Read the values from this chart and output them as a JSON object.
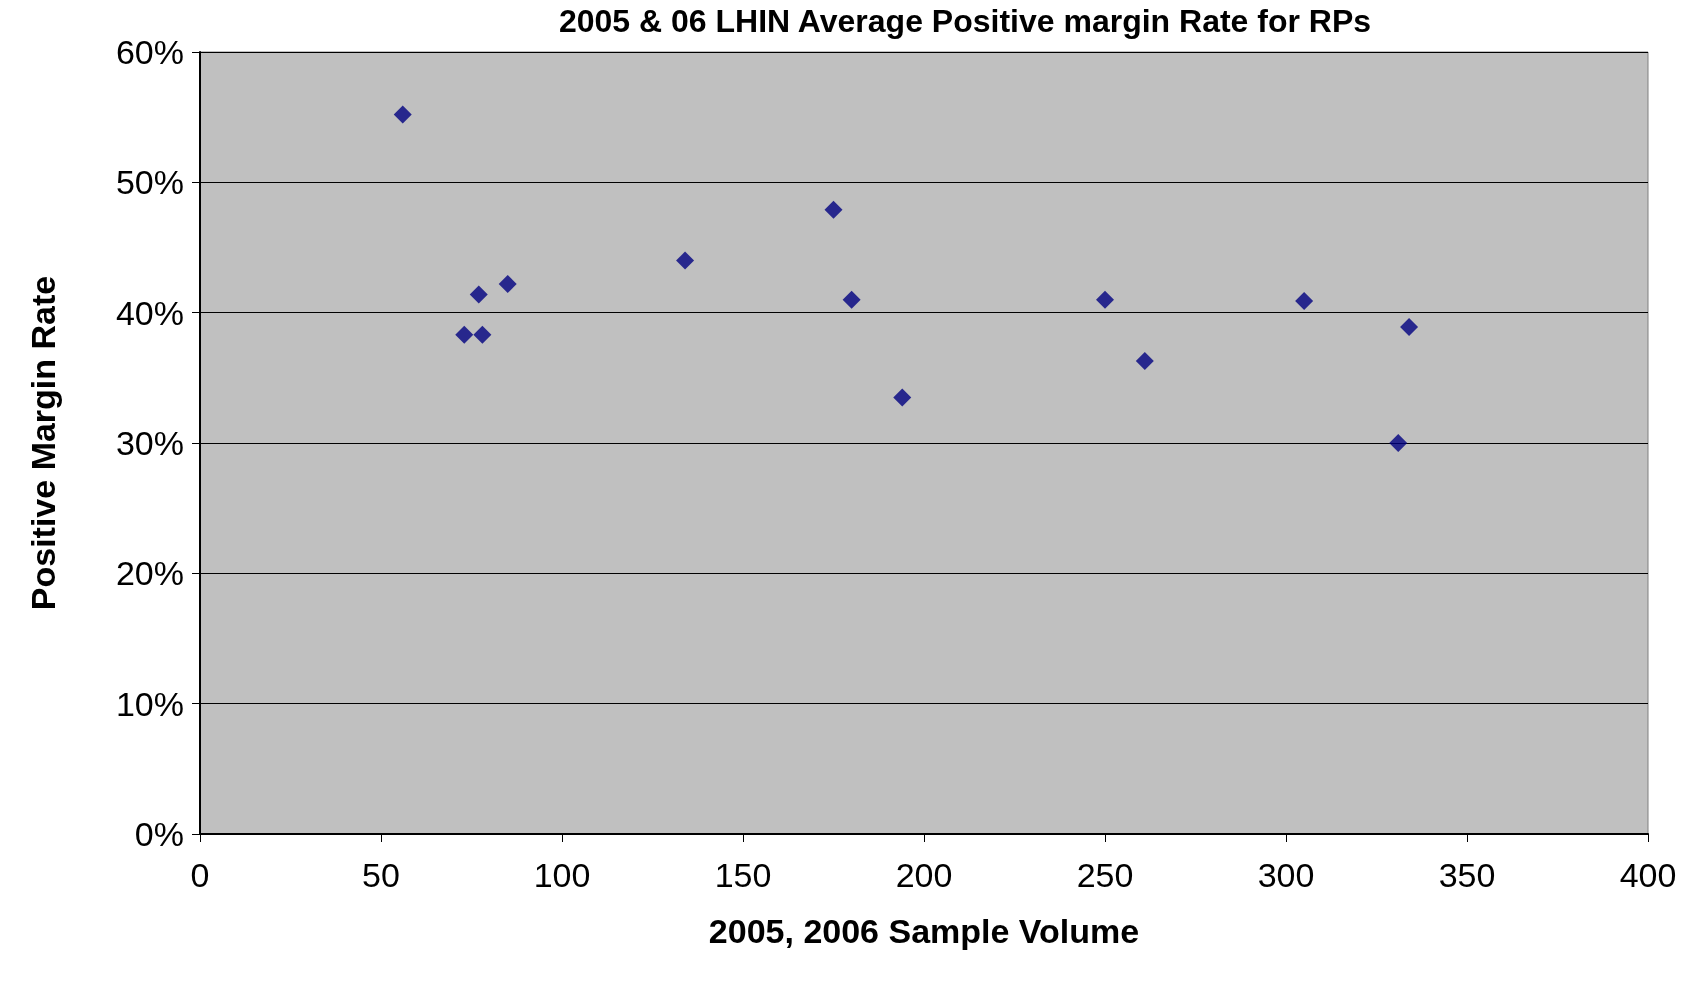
{
  "chart_data": {
    "type": "scatter",
    "title": "2005 & 06 LHIN Average Positive margin Rate for RPs",
    "xlabel": "2005, 2006 Sample Volume",
    "ylabel": "Positive Margin Rate",
    "x": [
      56,
      73,
      78,
      77,
      85,
      134,
      175,
      180,
      194,
      250,
      261,
      305,
      334,
      331
    ],
    "series": [
      {
        "color": "#000080",
        "values": [
          55.2,
          38.3,
          38.3,
          41.4,
          42.2,
          44.0,
          47.9,
          41.0,
          33.5,
          41.0,
          36.3,
          40.9,
          38.9,
          30.0
        ]
      }
    ],
    "xlim": [
      0,
      400
    ],
    "xticks": [
      0,
      50,
      100,
      150,
      200,
      250,
      300,
      350,
      400
    ],
    "ylim": [
      0,
      60
    ],
    "yticks": [
      {
        "value": 0,
        "label": "0%"
      },
      {
        "value": 10,
        "label": "10%"
      },
      {
        "value": 20,
        "label": "20%"
      },
      {
        "value": 30,
        "label": "30%"
      },
      {
        "value": 40,
        "label": "40%"
      },
      {
        "value": 50,
        "label": "50%"
      },
      {
        "value": 60,
        "label": "60%"
      }
    ],
    "grid": "y",
    "marker": "diamond"
  }
}
